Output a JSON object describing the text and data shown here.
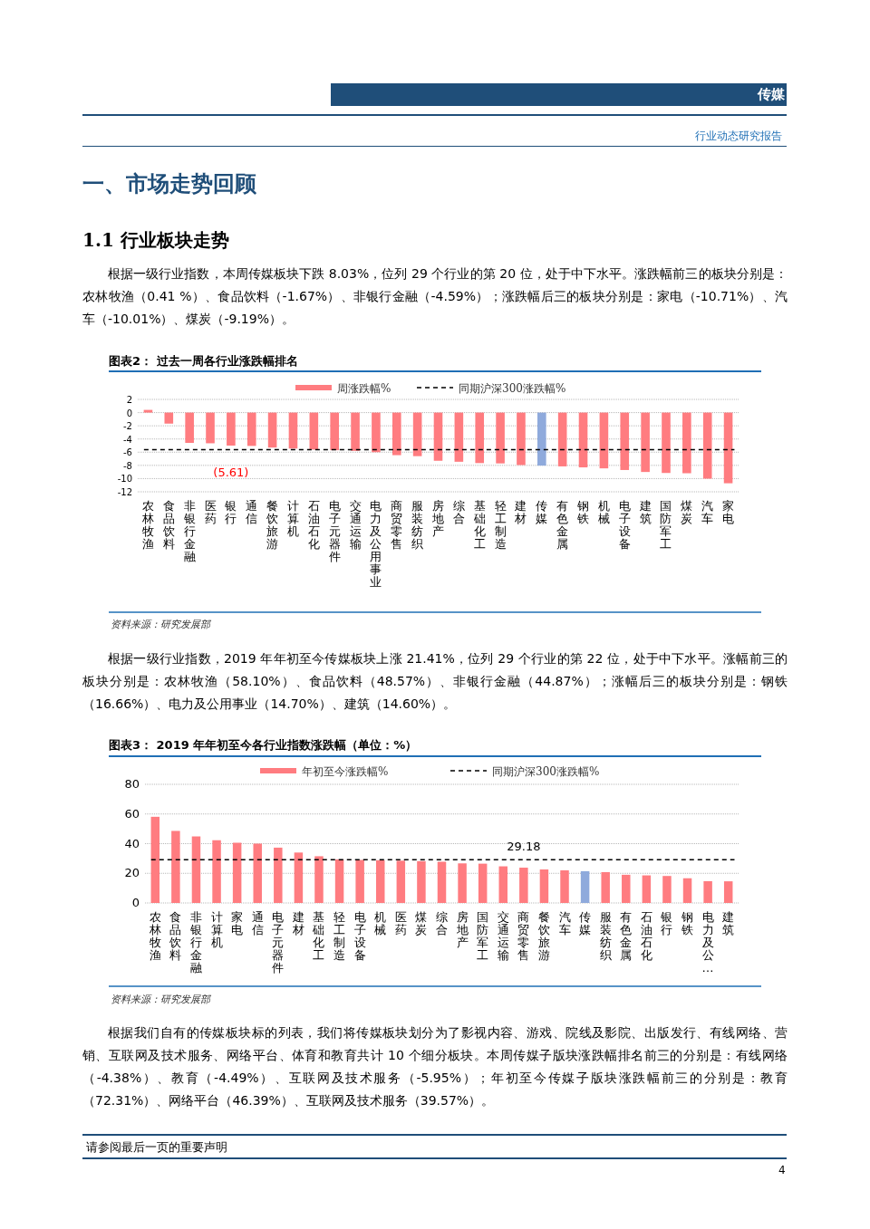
{
  "chart_data": [
    {
      "type": "bar",
      "title": "图表2：  过去一周各行业涨跌幅排名",
      "categories": [
        "农林牧渔",
        "食品饮料",
        "非银行金融",
        "医药",
        "银行",
        "通信",
        "餐饮旅游",
        "计算机",
        "石油石化",
        "电子元器件",
        "交通运输",
        "电力及公用事业",
        "商贸零售",
        "服装纺织",
        "房地产",
        "综合",
        "基础化工",
        "轻工制造",
        "建材",
        "传媒",
        "有色金属",
        "钢铁",
        "机械",
        "电子设备",
        "建筑",
        "国防军工",
        "煤炭",
        "汽车",
        "家电"
      ],
      "series": [
        {
          "name": "周涨跌幅%",
          "color": "#ff7c80",
          "colors": [
            "#ff7c80",
            "#ff7c80",
            "#ff7c80",
            "#ff7c80",
            "#ff7c80",
            "#ff7c80",
            "#ff7c80",
            "#ff7c80",
            "#ff7c80",
            "#ff7c80",
            "#ff7c80",
            "#ff7c80",
            "#ff7c80",
            "#ff7c80",
            "#ff7c80",
            "#ff7c80",
            "#ff7c80",
            "#ff7c80",
            "#ff7c80",
            "#8faadc",
            "#ff7c80",
            "#ff7c80",
            "#ff7c80",
            "#ff7c80",
            "#ff7c80",
            "#ff7c80",
            "#ff7c80",
            "#ff7c80",
            "#ff7c80"
          ],
          "values": [
            0.41,
            -1.67,
            -4.59,
            -4.65,
            -5.0,
            -5.05,
            -5.3,
            -5.45,
            -5.6,
            -5.7,
            -5.8,
            -6.0,
            -6.45,
            -6.6,
            -7.3,
            -7.45,
            -7.65,
            -7.7,
            -7.95,
            -8.03,
            -8.15,
            -8.3,
            -8.45,
            -8.7,
            -9.0,
            -9.15,
            -9.19,
            -10.01,
            -10.71
          ]
        }
      ],
      "ref_lines": [
        {
          "axis": "y",
          "value": -5.61,
          "label": "同期沪深300涨跌幅%",
          "color": "#000000",
          "line_style": "dashed"
        }
      ],
      "ylim": [
        -12,
        2
      ],
      "yticks": [
        -12,
        -10,
        -8,
        -6,
        -4,
        -2,
        0,
        2
      ],
      "grid": "y",
      "legend": "top",
      "annotations": [
        "传媒",
        "行业动态研究报告",
        "一、市场走势回顾",
        "1.1 行业板块走势",
        "根据一级行业指数，本周传媒板块下跌 8.03%，位列 29 个行业的第 20 位，处于中下水平。涨跌幅前三的板块分别是：农林牧渔（0.41 %）、食品饮料（-1.67%）、非银行金融（-4.59%）；涨跌幅后三的板块分别是：家电（-10.71%）、汽车（-10.01%）、煤炭（-9.19%）。",
        "资料来源：研究发展部",
        {
          "text": "(5.61)",
          "x": "银行",
          "y": -5.61
        }
      ]
    },
    {
      "type": "bar",
      "title": "图表3：  2019 年年初至今各行业指数涨跌幅（单位：%）",
      "categories": [
        "农林牧渔",
        "食品饮料",
        "非银行金融",
        "计算机",
        "家电",
        "通信",
        "电子元器件",
        "建材",
        "基础化工",
        "轻工制造",
        "电子设备",
        "机械",
        "医药",
        "煤炭",
        "综合",
        "房地产",
        "国防军工",
        "交通运输",
        "商贸零售",
        "餐饮旅游",
        "汽车",
        "传媒",
        "服装纺织",
        "有色金属",
        "石油石化",
        "银行",
        "钢铁",
        "电力及公…",
        "建筑"
      ],
      "series": [
        {
          "name": "年初至今涨跌幅%",
          "color": "#ff7c80",
          "colors": [
            "#ff7c80",
            "#ff7c80",
            "#ff7c80",
            "#ff7c80",
            "#ff7c80",
            "#ff7c80",
            "#ff7c80",
            "#ff7c80",
            "#ff7c80",
            "#ff7c80",
            "#ff7c80",
            "#ff7c80",
            "#ff7c80",
            "#ff7c80",
            "#ff7c80",
            "#ff7c80",
            "#ff7c80",
            "#ff7c80",
            "#ff7c80",
            "#ff7c80",
            "#ff7c80",
            "#8faadc",
            "#ff7c80",
            "#ff7c80",
            "#ff7c80",
            "#ff7c80",
            "#ff7c80",
            "#ff7c80",
            "#ff7c80"
          ],
          "values": [
            58.1,
            48.57,
            44.87,
            42.3,
            40.6,
            40.0,
            37.3,
            34.0,
            31.5,
            29.4,
            29.0,
            28.8,
            28.5,
            28.2,
            27.8,
            26.7,
            26.5,
            24.7,
            23.8,
            22.6,
            22.0,
            21.41,
            20.8,
            19.0,
            18.6,
            18.2,
            16.66,
            14.7,
            14.6
          ]
        }
      ],
      "ref_lines": [
        {
          "axis": "y",
          "value": 29.18,
          "label": "同期沪深300涨跌幅%",
          "color": "#000000",
          "line_style": "dashed"
        }
      ],
      "ylim": [
        0,
        80
      ],
      "yticks": [
        0,
        20,
        40,
        60,
        80
      ],
      "grid": "y",
      "legend": "top",
      "annotations": [
        "根据一级行业指数，2019 年年初至今传媒板块上涨 21.41%，位列 29 个行业的第 22 位，处于中下水平。涨幅前三的板块分别是：农林牧渔（58.10%）、食品饮料（48.57%）、非银行金融（44.87%）；涨幅后三的板块分别是：钢铁（16.66%）、电力及公用事业（14.70%）、建筑（14.60%）。",
        "资料来源：研究发展部",
        {
          "text": "29.18",
          "x": "商贸零售",
          "y": 29.18
        },
        "根据我们自有的传媒板块标的列表，我们将传媒板块划分为了影视内容、游戏、院线及影院、出版发行、有线网络、营销、互联网及技术服务、网络平台、体育和教育共计 10 个细分板块。本周传媒子版块涨跌幅排名前三的分别是：有线网络（-4.38%）、教育（-4.49%）、互联网及技术服务（-5.95%）；年初至今传媒子版块涨跌幅前三的分别是：教育（72.31%）、网络平台（46.39%）、互联网及技术服务（39.57%）。",
        "请参阅最后一页的重要声明",
        "4"
      ]
    }
  ]
}
